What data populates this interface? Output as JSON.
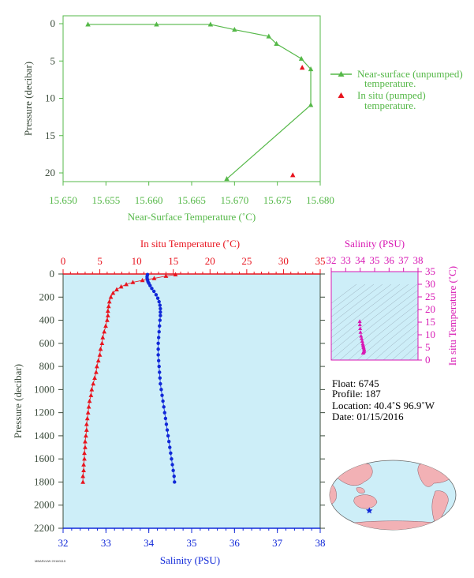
{
  "colors": {
    "green": "#55b848",
    "red": "#e8141e",
    "blue": "#1028d8",
    "magenta": "#d81ab4",
    "axis_text": "#3a4a3a",
    "plot_bg": "#cdeef8"
  },
  "chart_data": [
    {
      "type": "line",
      "xlabel": "Near-Surface Temperature (˚C)",
      "ylabel": "Pressure (decibar)",
      "xlim": [
        15.65,
        15.68
      ],
      "ylim": [
        0,
        22
      ],
      "y_inverted": true,
      "x_ticks": [
        "15.650",
        "15.655",
        "15.660",
        "15.665",
        "15.670",
        "15.675",
        "15.680"
      ],
      "y_ticks": [
        "0",
        "5",
        "10",
        "15",
        "20"
      ],
      "series": [
        {
          "name": "Near-surface (unpumped) temperature.",
          "color": "#55b848",
          "marker": "triangle",
          "points": [
            [
              15.6529,
              0.1
            ],
            [
              15.6609,
              0.1
            ],
            [
              15.6672,
              0.1
            ],
            [
              15.67,
              0.8
            ],
            [
              15.674,
              1.7
            ],
            [
              15.6749,
              2.7
            ],
            [
              15.6778,
              4.7
            ],
            [
              15.6789,
              6.1
            ],
            [
              15.6789,
              10.9
            ],
            [
              15.6691,
              20.8
            ]
          ]
        },
        {
          "name": "In situ (pumped) temperature.",
          "color": "#e8141e",
          "marker": "triangle",
          "points": [
            [
              15.6779,
              5.9
            ],
            [
              15.6768,
              20.3
            ]
          ]
        }
      ],
      "legend": [
        {
          "line1": "Near-surface (unpumped)",
          "line2": "temperature."
        },
        {
          "line1": "In situ (pumped)",
          "line2": "temperature."
        }
      ]
    },
    {
      "type": "line",
      "title_top": "In situ Temperature (˚C)",
      "xlabel": "Salinity (PSU)",
      "ylabel": "Pressure (decibar)",
      "temp_lim": [
        0,
        35
      ],
      "sal_lim": [
        32,
        38
      ],
      "ylim": [
        0,
        2200
      ],
      "y_inverted": true,
      "temp_ticks": [
        "0",
        "5",
        "10",
        "15",
        "20",
        "25",
        "30",
        "35"
      ],
      "sal_ticks": [
        "32",
        "33",
        "34",
        "35",
        "36",
        "37",
        "38"
      ],
      "y_ticks": [
        "0",
        "200",
        "400",
        "600",
        "800",
        "1000",
        "1200",
        "1400",
        "1600",
        "1800",
        "2000",
        "2200"
      ],
      "temperature_profile": [
        [
          15.3,
          5
        ],
        [
          14.0,
          18
        ],
        [
          12.4,
          38
        ],
        [
          10.8,
          55
        ],
        [
          9.5,
          72
        ],
        [
          8.6,
          90
        ],
        [
          7.9,
          110
        ],
        [
          7.3,
          135
        ],
        [
          6.8,
          165
        ],
        [
          6.5,
          200
        ],
        [
          6.3,
          240
        ],
        [
          6.2,
          280
        ],
        [
          6.1,
          320
        ],
        [
          6.1,
          360
        ],
        [
          6.0,
          400
        ],
        [
          5.8,
          450
        ],
        [
          5.6,
          500
        ],
        [
          5.4,
          550
        ],
        [
          5.3,
          600
        ],
        [
          5.1,
          650
        ],
        [
          5.0,
          700
        ],
        [
          4.8,
          750
        ],
        [
          4.6,
          800
        ],
        [
          4.5,
          850
        ],
        [
          4.3,
          900
        ],
        [
          4.1,
          950
        ],
        [
          3.9,
          1000
        ],
        [
          3.8,
          1050
        ],
        [
          3.6,
          1100
        ],
        [
          3.5,
          1150
        ],
        [
          3.4,
          1200
        ],
        [
          3.3,
          1250
        ],
        [
          3.2,
          1300
        ],
        [
          3.2,
          1350
        ],
        [
          3.1,
          1400
        ],
        [
          3.0,
          1450
        ],
        [
          3.0,
          1500
        ],
        [
          2.9,
          1550
        ],
        [
          2.9,
          1600
        ],
        [
          2.8,
          1650
        ],
        [
          2.8,
          1700
        ],
        [
          2.7,
          1750
        ],
        [
          2.7,
          1800
        ]
      ],
      "salinity_profile": [
        [
          33.97,
          5
        ],
        [
          33.96,
          20
        ],
        [
          33.96,
          35
        ],
        [
          33.97,
          50
        ],
        [
          33.98,
          65
        ],
        [
          34.0,
          80
        ],
        [
          34.03,
          100
        ],
        [
          34.07,
          125
        ],
        [
          34.12,
          150
        ],
        [
          34.17,
          180
        ],
        [
          34.21,
          210
        ],
        [
          34.24,
          240
        ],
        [
          34.26,
          270
        ],
        [
          34.27,
          300
        ],
        [
          34.27,
          330
        ],
        [
          34.27,
          360
        ],
        [
          34.26,
          400
        ],
        [
          34.25,
          450
        ],
        [
          34.24,
          500
        ],
        [
          34.23,
          550
        ],
        [
          34.22,
          600
        ],
        [
          34.22,
          650
        ],
        [
          34.22,
          700
        ],
        [
          34.23,
          750
        ],
        [
          34.24,
          800
        ],
        [
          34.25,
          850
        ],
        [
          34.26,
          900
        ],
        [
          34.27,
          950
        ],
        [
          34.29,
          1000
        ],
        [
          34.31,
          1050
        ],
        [
          34.33,
          1100
        ],
        [
          34.35,
          1150
        ],
        [
          34.37,
          1200
        ],
        [
          34.39,
          1250
        ],
        [
          34.41,
          1300
        ],
        [
          34.43,
          1350
        ],
        [
          34.45,
          1400
        ],
        [
          34.47,
          1450
        ],
        [
          34.49,
          1500
        ],
        [
          34.51,
          1550
        ],
        [
          34.53,
          1600
        ],
        [
          34.55,
          1650
        ],
        [
          34.57,
          1700
        ],
        [
          34.59,
          1750
        ],
        [
          34.6,
          1800
        ]
      ]
    },
    {
      "type": "scatter",
      "title": "Salinity (PSU)",
      "ylabel": "In situ Temperature (˚C)",
      "xlim": [
        32,
        38
      ],
      "ylim": [
        0,
        35
      ],
      "x_ticks": [
        "32",
        "33",
        "34",
        "35",
        "36",
        "37",
        "38"
      ],
      "y_ticks": [
        "0",
        "5",
        "10",
        "15",
        "20",
        "25",
        "30",
        "35"
      ],
      "points": [
        [
          34.2,
          2.8
        ],
        [
          34.22,
          3.0
        ],
        [
          34.25,
          3.3
        ],
        [
          34.27,
          3.6
        ],
        [
          34.28,
          4.0
        ],
        [
          34.26,
          4.5
        ],
        [
          34.24,
          5.0
        ],
        [
          34.22,
          5.5
        ],
        [
          34.2,
          6.0
        ],
        [
          34.18,
          6.5
        ],
        [
          34.14,
          7.5
        ],
        [
          34.1,
          8.5
        ],
        [
          34.06,
          9.5
        ],
        [
          34.02,
          11.0
        ],
        [
          34.0,
          12.5
        ],
        [
          33.98,
          14.0
        ],
        [
          33.97,
          15.3
        ]
      ]
    }
  ],
  "float_info": {
    "float": "Float:  6745",
    "profile": "Profile:  187",
    "location": "Location:  40.4˚S  96.9˚W",
    "date": "Date:  01/15/2016"
  },
  "footer_stamp": "MBARI/UW  20160115",
  "map": {
    "marker": "star",
    "marker_lon": -96.9,
    "marker_lat": -40.4
  }
}
